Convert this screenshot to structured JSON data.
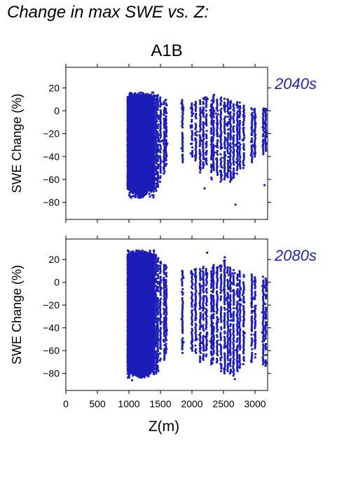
{
  "figure": {
    "title": "Change in max SWE vs. Z:",
    "scenario": "A1B",
    "colors": {
      "points": "#1c1cb8",
      "period_label": "#2424b4",
      "axis": "#000000"
    }
  },
  "chart_data": [
    {
      "type": "scatter",
      "period_label": "2040s",
      "xlabel": "Z(m)",
      "ylabel": "SWE Change (%)",
      "xlim": [
        0,
        3200
      ],
      "ylim": [
        -95,
        38
      ],
      "xticks": [
        0,
        500,
        1000,
        1500,
        2000,
        2500,
        3000
      ],
      "yticks": [
        -80,
        -60,
        -40,
        -20,
        0,
        20
      ],
      "show_x_tick_labels": false,
      "grid": false,
      "point_color": "#1c1cb8",
      "dense_band": {
        "x_range": [
          980,
          1400
        ],
        "upper_envelope": 16,
        "lower_envelope": -76
      },
      "columns": [
        {
          "x": 1430,
          "y_min": -70,
          "y_max": 14
        },
        {
          "x": 1460,
          "y_min": -68,
          "y_max": 14
        },
        {
          "x": 1500,
          "y_min": -62,
          "y_max": 12
        },
        {
          "x": 1560,
          "y_min": -55,
          "y_max": 10
        },
        {
          "x": 1590,
          "y_min": -48,
          "y_max": 10
        },
        {
          "x": 1850,
          "y_min": -45,
          "y_max": 10
        },
        {
          "x": 2000,
          "y_min": -40,
          "y_max": 7
        },
        {
          "x": 2060,
          "y_min": -45,
          "y_max": 9
        },
        {
          "x": 2130,
          "y_min": -55,
          "y_max": 10
        },
        {
          "x": 2180,
          "y_min": -50,
          "y_max": 12
        },
        {
          "x": 2230,
          "y_min": -48,
          "y_max": 12
        },
        {
          "x": 2310,
          "y_min": -60,
          "y_max": 12
        },
        {
          "x": 2340,
          "y_min": -52,
          "y_max": 14
        },
        {
          "x": 2400,
          "y_min": -56,
          "y_max": 11
        },
        {
          "x": 2460,
          "y_min": -62,
          "y_max": 12
        },
        {
          "x": 2520,
          "y_min": -60,
          "y_max": 11
        },
        {
          "x": 2570,
          "y_min": -58,
          "y_max": 10
        },
        {
          "x": 2610,
          "y_min": -62,
          "y_max": 10
        },
        {
          "x": 2660,
          "y_min": -60,
          "y_max": 8
        },
        {
          "x": 2720,
          "y_min": -55,
          "y_max": 8
        },
        {
          "x": 2760,
          "y_min": -52,
          "y_max": 8
        },
        {
          "x": 2820,
          "y_min": -50,
          "y_max": 5
        },
        {
          "x": 2950,
          "y_min": -45,
          "y_max": 3
        },
        {
          "x": 3000,
          "y_min": -40,
          "y_max": 2
        },
        {
          "x": 3130,
          "y_min": -38,
          "y_max": 3
        },
        {
          "x": 3170,
          "y_min": -35,
          "y_max": 2
        }
      ],
      "outliers": [
        {
          "x": 2690,
          "y": -82
        },
        {
          "x": 2200,
          "y": -68
        },
        {
          "x": 3150,
          "y": -65
        },
        {
          "x": 1030,
          "y": -75
        },
        {
          "x": 2350,
          "y": 14
        }
      ]
    },
    {
      "type": "scatter",
      "period_label": "2080s",
      "xlabel": "Z(m)",
      "ylabel": "SWE Change (%)",
      "xlim": [
        0,
        3200
      ],
      "ylim": [
        -95,
        38
      ],
      "xticks": [
        0,
        500,
        1000,
        1500,
        2000,
        2500,
        3000
      ],
      "yticks": [
        -80,
        -60,
        -40,
        -20,
        0,
        20
      ],
      "show_x_tick_labels": true,
      "grid": false,
      "point_color": "#1c1cb8",
      "dense_band": {
        "x_range": [
          980,
          1400
        ],
        "upper_envelope": 28,
        "lower_envelope": -84
      },
      "columns": [
        {
          "x": 1430,
          "y_min": -80,
          "y_max": 26
        },
        {
          "x": 1460,
          "y_min": -78,
          "y_max": 22
        },
        {
          "x": 1500,
          "y_min": -72,
          "y_max": 18
        },
        {
          "x": 1560,
          "y_min": -68,
          "y_max": 16
        },
        {
          "x": 1590,
          "y_min": -62,
          "y_max": 15
        },
        {
          "x": 1850,
          "y_min": -62,
          "y_max": 11
        },
        {
          "x": 2000,
          "y_min": -60,
          "y_max": 10
        },
        {
          "x": 2060,
          "y_min": -62,
          "y_max": 12
        },
        {
          "x": 2130,
          "y_min": -70,
          "y_max": 12
        },
        {
          "x": 2180,
          "y_min": -68,
          "y_max": 14
        },
        {
          "x": 2230,
          "y_min": -65,
          "y_max": 12
        },
        {
          "x": 2310,
          "y_min": -72,
          "y_max": 12
        },
        {
          "x": 2340,
          "y_min": -68,
          "y_max": 16
        },
        {
          "x": 2400,
          "y_min": -72,
          "y_max": 14
        },
        {
          "x": 2460,
          "y_min": -78,
          "y_max": 16
        },
        {
          "x": 2520,
          "y_min": -80,
          "y_max": 20
        },
        {
          "x": 2570,
          "y_min": -78,
          "y_max": 14
        },
        {
          "x": 2610,
          "y_min": -80,
          "y_max": 14
        },
        {
          "x": 2660,
          "y_min": -82,
          "y_max": 12
        },
        {
          "x": 2720,
          "y_min": -78,
          "y_max": 10
        },
        {
          "x": 2760,
          "y_min": -75,
          "y_max": 10
        },
        {
          "x": 2820,
          "y_min": -72,
          "y_max": 8
        },
        {
          "x": 2950,
          "y_min": -70,
          "y_max": 8
        },
        {
          "x": 3000,
          "y_min": -66,
          "y_max": 6
        },
        {
          "x": 3130,
          "y_min": -72,
          "y_max": 5
        },
        {
          "x": 3170,
          "y_min": -75,
          "y_max": 4
        }
      ],
      "outliers": [
        {
          "x": 2680,
          "y": -85
        },
        {
          "x": 2240,
          "y": 26
        },
        {
          "x": 2520,
          "y": 22
        },
        {
          "x": 1050,
          "y": -86
        },
        {
          "x": 3160,
          "y": -70
        }
      ]
    }
  ]
}
